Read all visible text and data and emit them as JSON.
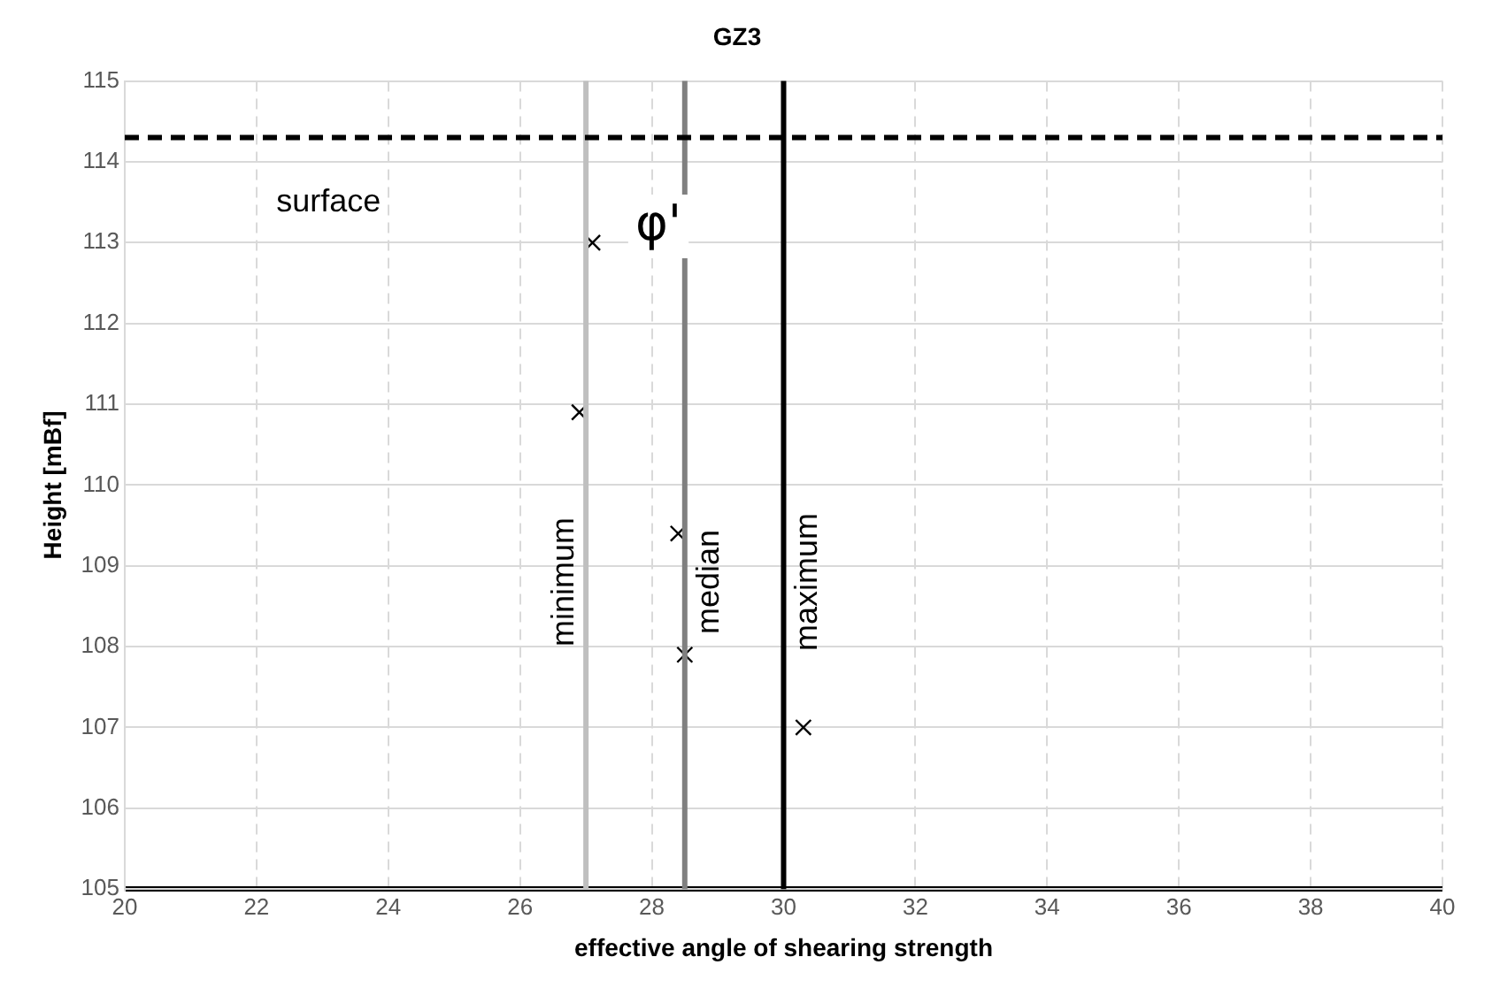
{
  "chart_data": {
    "type": "scatter",
    "title": "GZ3",
    "xlabel": "effective angle of shearing strength",
    "ylabel": "Height [mBf]",
    "x": [
      27.1,
      26.9,
      28.4,
      28.5,
      30.3
    ],
    "series": [
      {
        "color": "#000000",
        "values": [
          113,
          110.9,
          109.4,
          107.9,
          107
        ]
      }
    ],
    "marker": "cross",
    "grid": true,
    "legend": false,
    "xlim": [
      20,
      40
    ],
    "xticks": [
      20,
      22,
      24,
      26,
      28,
      30,
      32,
      34,
      36,
      38,
      40
    ],
    "ylim": [
      105,
      115
    ],
    "yticks": [
      105,
      106,
      107,
      108,
      109,
      110,
      111,
      112,
      113,
      114,
      115
    ],
    "ref_lines": [
      {
        "axis": "x",
        "value": 27,
        "label": "minimum",
        "color": "#bfbfbf",
        "line_style": "solid"
      },
      {
        "axis": "x",
        "value": 28.5,
        "label": "median",
        "color": "#808080",
        "line_style": "solid"
      },
      {
        "axis": "x",
        "value": 30,
        "label": "maximum",
        "color": "#000000",
        "line_style": "solid"
      },
      {
        "axis": "y",
        "value": 114.3,
        "label": "surface",
        "color": "#000000",
        "line_style": "dashed"
      }
    ],
    "annotations": [
      "φ'"
    ]
  }
}
